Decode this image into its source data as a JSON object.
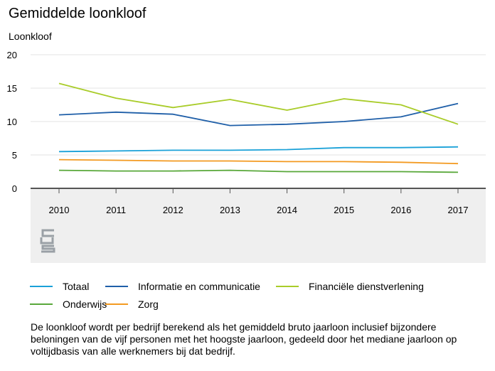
{
  "title": "Gemiddelde loonkloof",
  "ylabel": "Loonkloof",
  "chart_data": {
    "type": "line",
    "title": "Gemiddelde loonkloof",
    "ylabel": "Loonkloof",
    "xlabel": "",
    "x": [
      "2010",
      "2011",
      "2012",
      "2013",
      "2014",
      "2015",
      "2016",
      "2017"
    ],
    "ylim": [
      0,
      20
    ],
    "yticks": [
      "0",
      "5",
      "10",
      "15",
      "20"
    ],
    "grid": true,
    "legend": "bottom",
    "series": [
      {
        "name": "Totaal",
        "color": "#1aa1d8",
        "values": [
          5.5,
          5.6,
          5.7,
          5.7,
          5.8,
          6.1,
          6.1,
          6.2
        ]
      },
      {
        "name": "Informatie en communicatie",
        "color": "#1f5fa8",
        "values": [
          11.0,
          11.4,
          11.1,
          9.4,
          9.6,
          10.0,
          10.7,
          12.7
        ]
      },
      {
        "name": "Financiële dienstverlening",
        "color": "#a9cc29",
        "values": [
          15.7,
          13.5,
          12.1,
          13.3,
          11.7,
          13.4,
          12.5,
          9.6
        ]
      },
      {
        "name": "Onderwijs",
        "color": "#59a83a",
        "values": [
          2.7,
          2.6,
          2.6,
          2.7,
          2.5,
          2.5,
          2.5,
          2.4
        ]
      },
      {
        "name": "Zorg",
        "color": "#f39a21",
        "values": [
          4.3,
          4.2,
          4.1,
          4.1,
          4.0,
          4.0,
          3.9,
          3.7
        ]
      }
    ]
  },
  "footnote": "De loonkloof wordt per bedrijf berekend als het gemiddeld bruto jaarloon inclusief bijzondere beloningen van de vijf personen met het hoogste jaarloon, gedeeld door het mediane jaarloon op voltijdbasis van alle werknemers bij dat bedrijf.",
  "logo": {
    "name": "cbs-logo",
    "color": "#9aa0a6"
  }
}
